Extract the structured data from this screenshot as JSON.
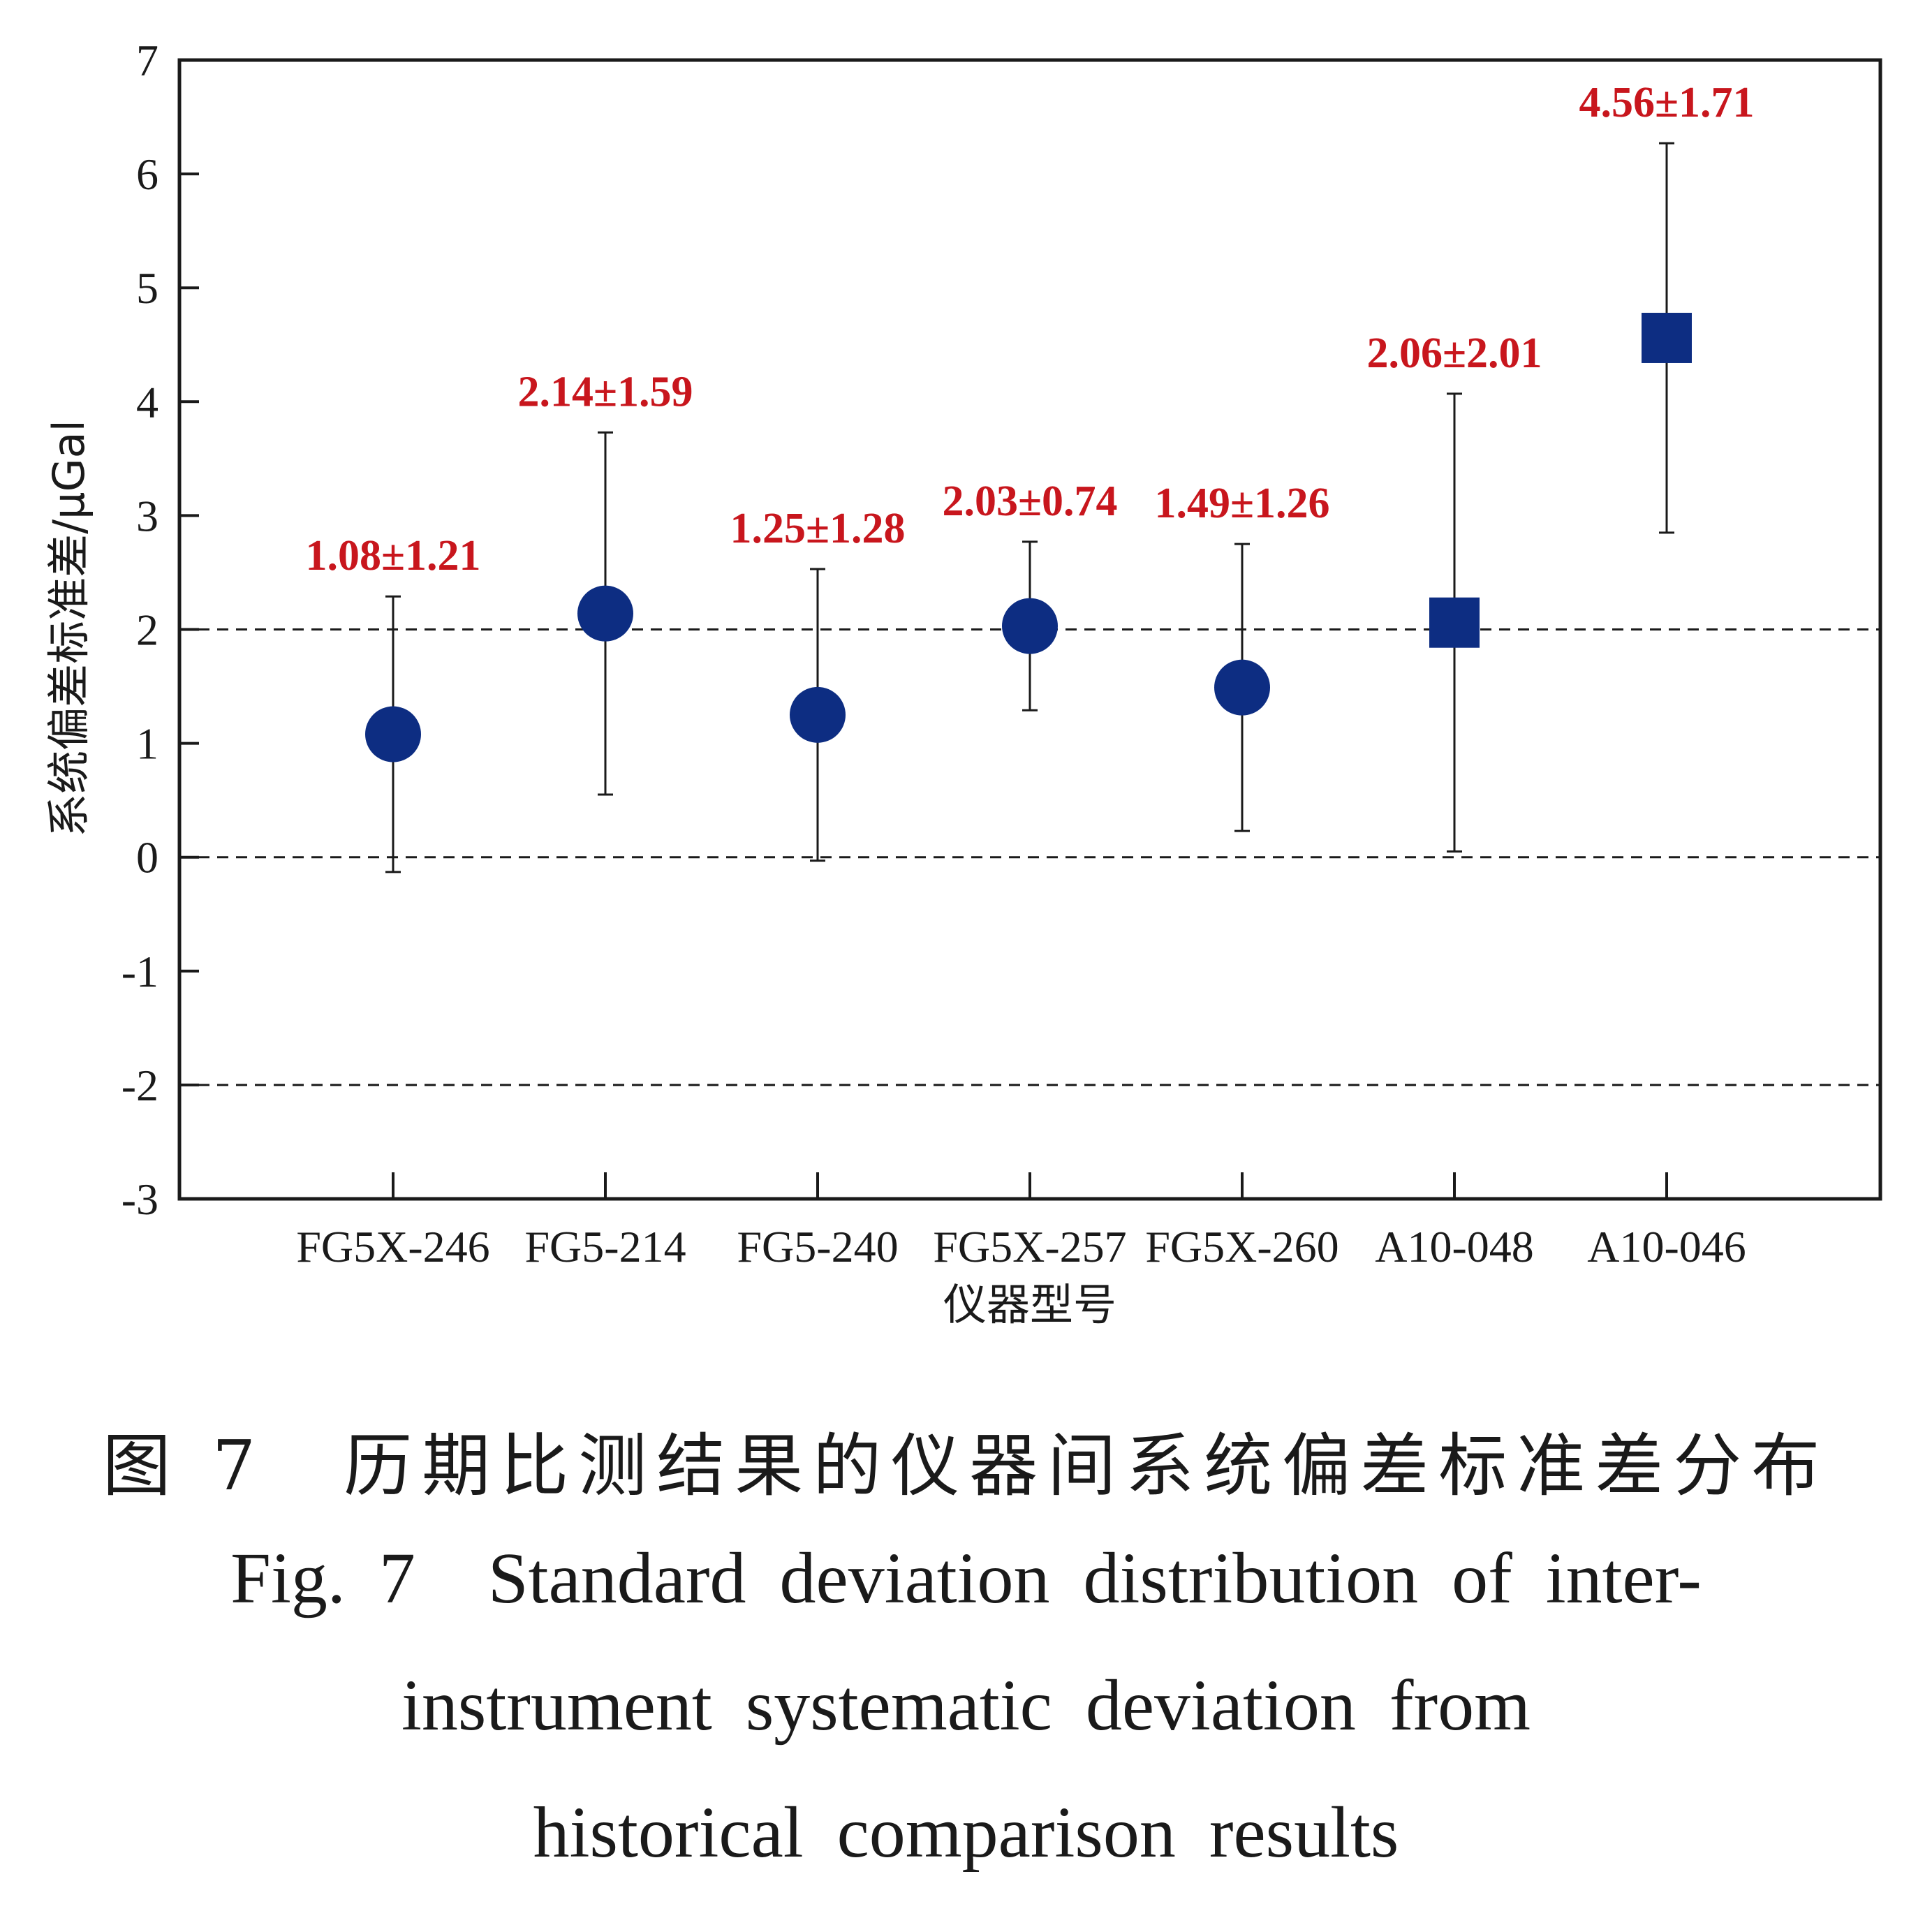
{
  "chart_data": {
    "type": "scatter",
    "xlabel": "仪器型号",
    "ylabel": "系统偏差标准差/μGal",
    "ylim": [
      -3,
      7
    ],
    "yticks": [
      "7",
      "6",
      "5",
      "4",
      "3",
      "2",
      "1",
      "0",
      "-1",
      "-2",
      "-3"
    ],
    "reference_lines": [
      2,
      0,
      -2
    ],
    "grid": false,
    "categories": [
      "FG5X-246",
      "FG5-214",
      "FG5-240",
      "FG5X-257",
      "FG5X-260",
      "A10-048",
      "A10-046"
    ],
    "points": [
      {
        "category": "FG5X-246",
        "value": 1.08,
        "error": 1.21,
        "marker": "circle",
        "label": "1.08±1.21"
      },
      {
        "category": "FG5-214",
        "value": 2.14,
        "error": 1.59,
        "marker": "circle",
        "label": "2.14±1.59"
      },
      {
        "category": "FG5-240",
        "value": 1.25,
        "error": 1.28,
        "marker": "circle",
        "label": "1.25±1.28"
      },
      {
        "category": "FG5X-257",
        "value": 2.03,
        "error": 0.74,
        "marker": "circle",
        "label": "2.03±0.74"
      },
      {
        "category": "FG5X-260",
        "value": 1.49,
        "error": 1.26,
        "marker": "circle",
        "label": "1.49±1.26"
      },
      {
        "category": "A10-048",
        "value": 2.06,
        "error": 2.01,
        "marker": "square",
        "label": "2.06±2.01"
      },
      {
        "category": "A10-046",
        "value": 4.56,
        "error": 1.71,
        "marker": "square",
        "label": "4.56±1.71"
      }
    ],
    "colors": {
      "marker": "#0d2d82",
      "label": "#c8161d",
      "axis": "#1a1a1a"
    }
  },
  "caption": {
    "cn": "图 7　历期比测结果的仪器间系统偏差标准差分布",
    "en_lines": [
      "Fig. 7　Standard deviation distribution of inter-",
      "instrument systematic deviation from",
      "historical comparison results"
    ]
  }
}
